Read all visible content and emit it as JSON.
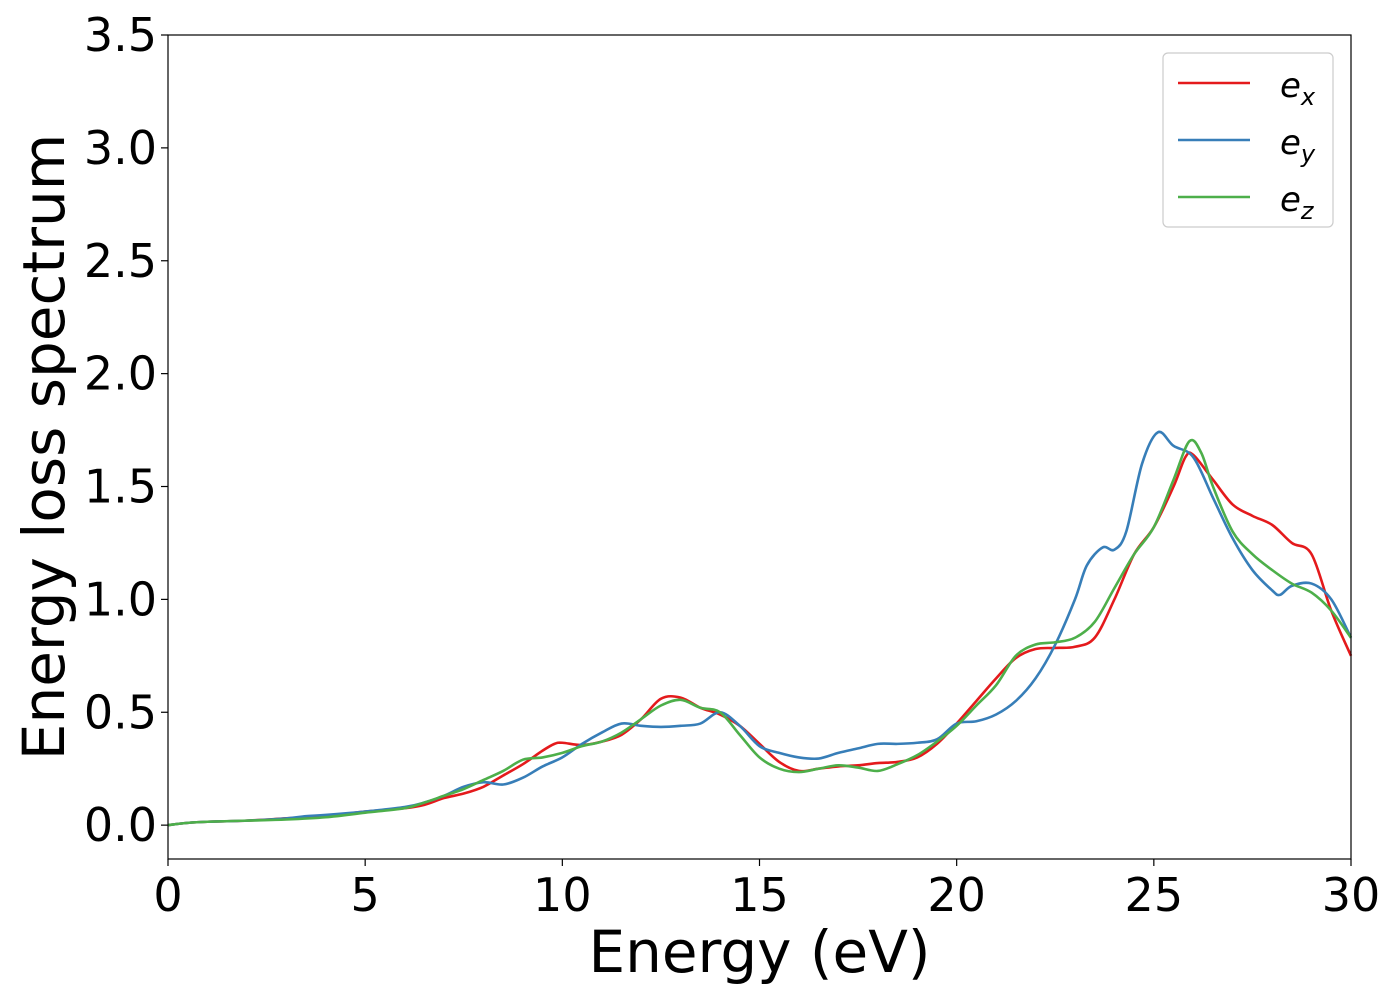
{
  "chart_data": {
    "type": "line",
    "title": "",
    "xlabel": "Energy (eV)",
    "ylabel": "Energy loss spectrum",
    "xlim": [
      0,
      30
    ],
    "ylim": [
      -0.15,
      3.5
    ],
    "xticks": [
      0,
      5,
      10,
      15,
      20,
      25,
      30
    ],
    "xtick_labels": [
      "0",
      "5",
      "10",
      "15",
      "20",
      "25",
      "30"
    ],
    "yticks": [
      0.0,
      0.5,
      1.0,
      1.5,
      2.0,
      2.5,
      3.0,
      3.5
    ],
    "ytick_labels": [
      "0.0",
      "0.5",
      "1.0",
      "1.5",
      "2.0",
      "2.5",
      "3.0",
      "3.5"
    ],
    "grid": false,
    "legend": "top-right",
    "series": [
      {
        "name_base": "e",
        "name_sub": "x",
        "color": "#e41a1c",
        "points": [
          [
            0,
            0.0
          ],
          [
            0.5,
            0.01
          ],
          [
            1,
            0.015
          ],
          [
            2,
            0.02
          ],
          [
            3,
            0.03
          ],
          [
            4,
            0.04
          ],
          [
            5,
            0.06
          ],
          [
            6,
            0.075
          ],
          [
            6.5,
            0.09
          ],
          [
            7,
            0.12
          ],
          [
            7.5,
            0.14
          ],
          [
            8,
            0.17
          ],
          [
            8.5,
            0.22
          ],
          [
            9,
            0.27
          ],
          [
            9.5,
            0.33
          ],
          [
            9.8,
            0.36
          ],
          [
            10,
            0.365
          ],
          [
            10.5,
            0.355
          ],
          [
            11,
            0.37
          ],
          [
            11.5,
            0.4
          ],
          [
            12,
            0.47
          ],
          [
            12.5,
            0.56
          ],
          [
            13,
            0.565
          ],
          [
            13.5,
            0.52
          ],
          [
            14,
            0.49
          ],
          [
            14.5,
            0.44
          ],
          [
            15,
            0.36
          ],
          [
            15.5,
            0.28
          ],
          [
            16,
            0.24
          ],
          [
            16.5,
            0.25
          ],
          [
            17,
            0.26
          ],
          [
            17.5,
            0.265
          ],
          [
            18,
            0.275
          ],
          [
            18.5,
            0.28
          ],
          [
            19,
            0.3
          ],
          [
            19.5,
            0.36
          ],
          [
            20,
            0.45
          ],
          [
            20.5,
            0.55
          ],
          [
            21,
            0.65
          ],
          [
            21.5,
            0.74
          ],
          [
            22,
            0.78
          ],
          [
            22.5,
            0.785
          ],
          [
            23,
            0.79
          ],
          [
            23.5,
            0.83
          ],
          [
            24,
            1.0
          ],
          [
            24.5,
            1.2
          ],
          [
            25,
            1.32
          ],
          [
            25.5,
            1.5
          ],
          [
            25.8,
            1.63
          ],
          [
            26,
            1.64
          ],
          [
            26.5,
            1.53
          ],
          [
            27,
            1.42
          ],
          [
            27.5,
            1.37
          ],
          [
            28,
            1.33
          ],
          [
            28.5,
            1.25
          ],
          [
            29,
            1.2
          ],
          [
            29.5,
            0.95
          ],
          [
            30,
            0.75
          ]
        ]
      },
      {
        "name_base": "e",
        "name_sub": "y",
        "color": "#377eb8",
        "points": [
          [
            0,
            0.0
          ],
          [
            0.5,
            0.01
          ],
          [
            1,
            0.015
          ],
          [
            2,
            0.02
          ],
          [
            3,
            0.03
          ],
          [
            3.5,
            0.04
          ],
          [
            4,
            0.045
          ],
          [
            5,
            0.06
          ],
          [
            6,
            0.08
          ],
          [
            6.5,
            0.1
          ],
          [
            7,
            0.13
          ],
          [
            7.5,
            0.17
          ],
          [
            8,
            0.19
          ],
          [
            8.5,
            0.18
          ],
          [
            9,
            0.21
          ],
          [
            9.5,
            0.26
          ],
          [
            10,
            0.3
          ],
          [
            10.5,
            0.36
          ],
          [
            11,
            0.41
          ],
          [
            11.5,
            0.45
          ],
          [
            12,
            0.44
          ],
          [
            12.5,
            0.435
          ],
          [
            13,
            0.44
          ],
          [
            13.5,
            0.45
          ],
          [
            14,
            0.5
          ],
          [
            14.5,
            0.44
          ],
          [
            15,
            0.35
          ],
          [
            15.5,
            0.32
          ],
          [
            16,
            0.3
          ],
          [
            16.5,
            0.295
          ],
          [
            17,
            0.32
          ],
          [
            17.5,
            0.34
          ],
          [
            18,
            0.36
          ],
          [
            18.5,
            0.36
          ],
          [
            19,
            0.365
          ],
          [
            19.5,
            0.38
          ],
          [
            20,
            0.45
          ],
          [
            20.5,
            0.46
          ],
          [
            21,
            0.49
          ],
          [
            21.5,
            0.55
          ],
          [
            22,
            0.65
          ],
          [
            22.5,
            0.8
          ],
          [
            23,
            1.0
          ],
          [
            23.3,
            1.15
          ],
          [
            23.7,
            1.23
          ],
          [
            24,
            1.22
          ],
          [
            24.3,
            1.3
          ],
          [
            24.7,
            1.6
          ],
          [
            25.1,
            1.74
          ],
          [
            25.5,
            1.68
          ],
          [
            26,
            1.63
          ],
          [
            26.5,
            1.45
          ],
          [
            27,
            1.27
          ],
          [
            27.5,
            1.13
          ],
          [
            28,
            1.04
          ],
          [
            28.2,
            1.02
          ],
          [
            28.5,
            1.06
          ],
          [
            29,
            1.07
          ],
          [
            29.5,
            1.0
          ],
          [
            30,
            0.83
          ]
        ]
      },
      {
        "name_base": "e",
        "name_sub": "z",
        "color": "#4daf4a",
        "points": [
          [
            0,
            0.0
          ],
          [
            0.5,
            0.01
          ],
          [
            1,
            0.015
          ],
          [
            2,
            0.02
          ],
          [
            3,
            0.025
          ],
          [
            4,
            0.035
          ],
          [
            5,
            0.055
          ],
          [
            6,
            0.075
          ],
          [
            6.5,
            0.1
          ],
          [
            7,
            0.13
          ],
          [
            7.5,
            0.16
          ],
          [
            8,
            0.2
          ],
          [
            8.5,
            0.24
          ],
          [
            9,
            0.29
          ],
          [
            9.5,
            0.3
          ],
          [
            10,
            0.32
          ],
          [
            10.5,
            0.35
          ],
          [
            11,
            0.37
          ],
          [
            11.5,
            0.41
          ],
          [
            12,
            0.47
          ],
          [
            12.5,
            0.53
          ],
          [
            13,
            0.555
          ],
          [
            13.5,
            0.52
          ],
          [
            14,
            0.5
          ],
          [
            14.5,
            0.4
          ],
          [
            15,
            0.3
          ],
          [
            15.5,
            0.25
          ],
          [
            16,
            0.235
          ],
          [
            16.5,
            0.25
          ],
          [
            17,
            0.265
          ],
          [
            17.5,
            0.255
          ],
          [
            18,
            0.24
          ],
          [
            18.5,
            0.27
          ],
          [
            19,
            0.31
          ],
          [
            19.5,
            0.37
          ],
          [
            20,
            0.44
          ],
          [
            20.5,
            0.53
          ],
          [
            21,
            0.62
          ],
          [
            21.5,
            0.75
          ],
          [
            22,
            0.8
          ],
          [
            22.5,
            0.81
          ],
          [
            23,
            0.83
          ],
          [
            23.5,
            0.9
          ],
          [
            24,
            1.05
          ],
          [
            24.5,
            1.2
          ],
          [
            25,
            1.32
          ],
          [
            25.5,
            1.53
          ],
          [
            25.9,
            1.7
          ],
          [
            26.2,
            1.65
          ],
          [
            26.5,
            1.5
          ],
          [
            27,
            1.3
          ],
          [
            27.5,
            1.2
          ],
          [
            28,
            1.13
          ],
          [
            28.5,
            1.07
          ],
          [
            29,
            1.03
          ],
          [
            29.5,
            0.95
          ],
          [
            30,
            0.83
          ]
        ]
      }
    ]
  }
}
